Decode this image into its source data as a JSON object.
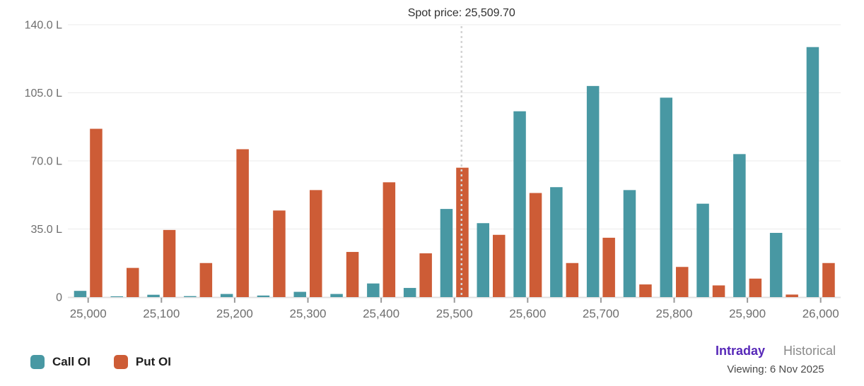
{
  "chart_data": {
    "type": "bar",
    "unit": "L (lakhs of contracts, open interest)",
    "categories": [
      25000,
      25050,
      25100,
      25150,
      25200,
      25250,
      25300,
      25350,
      25400,
      25450,
      25500,
      25550,
      25600,
      25650,
      25700,
      25750,
      25800,
      25850,
      25900,
      25950,
      26000
    ],
    "series": [
      {
        "name": "Call OI",
        "color": "#4898a3",
        "values": [
          3.2,
          0.4,
          1.2,
          0.5,
          1.6,
          0.8,
          2.7,
          1.6,
          7.0,
          4.7,
          45.3,
          38.0,
          95.5,
          56.5,
          108.5,
          55.0,
          102.5,
          48.0,
          73.5,
          33.0,
          128.5
        ]
      },
      {
        "name": "Put OI",
        "color": "#cd5c36",
        "values": [
          86.5,
          15.0,
          34.5,
          17.5,
          76.0,
          44.5,
          55.0,
          23.2,
          59.0,
          22.5,
          66.5,
          32.0,
          53.5,
          17.5,
          30.5,
          6.5,
          15.5,
          6.0,
          9.5,
          1.3,
          17.5
        ]
      }
    ],
    "y_ticks": [
      {
        "value": 0,
        "label": "0"
      },
      {
        "value": 35,
        "label": "35.0 L"
      },
      {
        "value": 70,
        "label": "70.0 L"
      },
      {
        "value": 105,
        "label": "105.0 L"
      },
      {
        "value": 140,
        "label": "140.0 L"
      }
    ],
    "x_ticks": [
      {
        "index": 0,
        "label": "25,000"
      },
      {
        "index": 2,
        "label": "25,100"
      },
      {
        "index": 4,
        "label": "25,200"
      },
      {
        "index": 6,
        "label": "25,300"
      },
      {
        "index": 8,
        "label": "25,400"
      },
      {
        "index": 10,
        "label": "25,500"
      },
      {
        "index": 12,
        "label": "25,600"
      },
      {
        "index": 14,
        "label": "25,700"
      },
      {
        "index": 16,
        "label": "25,800"
      },
      {
        "index": 18,
        "label": "25,900"
      },
      {
        "index": 20,
        "label": "26,000"
      }
    ],
    "ylim": [
      0,
      140
    ],
    "grid": true,
    "legend_position": "bottom-left",
    "spot": {
      "value": 25509.7,
      "label": "Spot price: 25,509.70"
    }
  },
  "legend": {
    "call": {
      "label": "Call OI",
      "color": "#4898a3"
    },
    "put": {
      "label": "Put OI",
      "color": "#cd5c36"
    }
  },
  "footer": {
    "intraday_label": "Intraday",
    "historical_label": "Historical",
    "viewing_label": "Viewing: 6 Nov 2025"
  }
}
